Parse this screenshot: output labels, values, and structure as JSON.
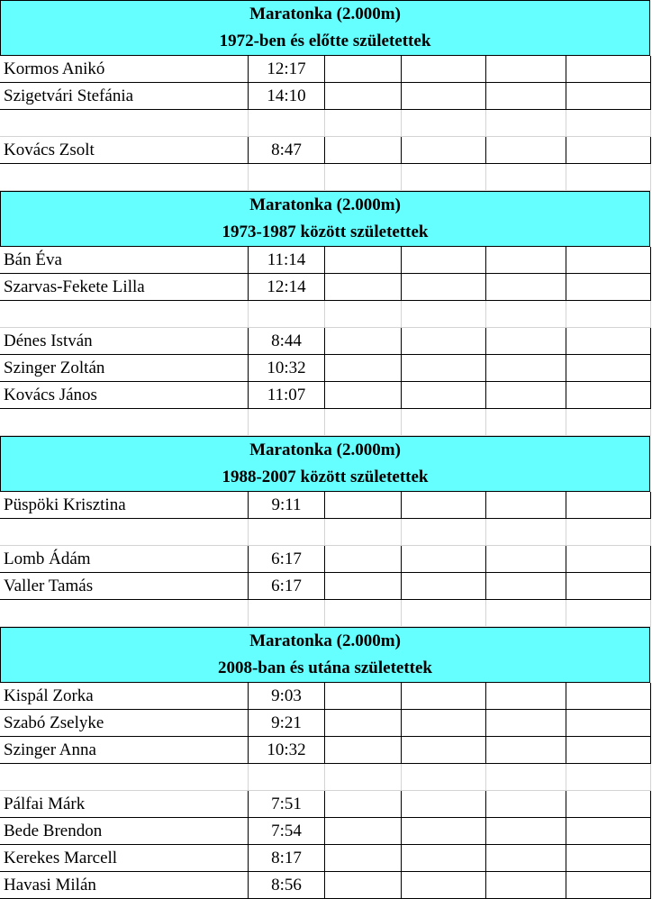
{
  "sections": [
    {
      "title": "Maratonka (2.000m)",
      "subtitle": "1972-ben és előtte születettek",
      "women": [
        {
          "name": "Kormos Anikó",
          "time": "12:17"
        },
        {
          "name": "Szigetvári Stefánia",
          "time": "14:10"
        }
      ],
      "men": [
        {
          "name": "Kovács Zsolt",
          "time": "8:47"
        }
      ]
    },
    {
      "title": "Maratonka (2.000m)",
      "subtitle": "1973-1987 között születettek",
      "women": [
        {
          "name": "Bán Éva",
          "time": "11:14"
        },
        {
          "name": "Szarvas-Fekete Lilla",
          "time": "12:14"
        }
      ],
      "men": [
        {
          "name": "Dénes István",
          "time": "8:44"
        },
        {
          "name": "Szinger Zoltán",
          "time": "10:32"
        },
        {
          "name": "Kovács János",
          "time": "11:07"
        }
      ]
    },
    {
      "title": "Maratonka (2.000m)",
      "subtitle": "1988-2007 között születettek",
      "women": [
        {
          "name": "Püspöki Krisztina",
          "time": "9:11"
        }
      ],
      "men": [
        {
          "name": "Lomb Ádám",
          "time": "6:17"
        },
        {
          "name": "Valler Tamás",
          "time": "6:17"
        }
      ]
    },
    {
      "title": "Maratonka (2.000m)",
      "subtitle": "2008-ban és utána születettek",
      "women": [
        {
          "name": "Kispál Zorka",
          "time": "9:03"
        },
        {
          "name": "Szabó Zselyke",
          "time": "9:21"
        },
        {
          "name": "Szinger Anna",
          "time": "10:32"
        }
      ],
      "men": [
        {
          "name": "Pálfai Márk",
          "time": "7:51"
        },
        {
          "name": "Bede Brendon",
          "time": "7:54"
        },
        {
          "name": "Kerekes Marcell",
          "time": "8:17"
        },
        {
          "name": "Havasi Milán",
          "time": "8:56"
        }
      ]
    }
  ],
  "colors": {
    "header_fill": "#66ffff",
    "grid": "#000000"
  }
}
